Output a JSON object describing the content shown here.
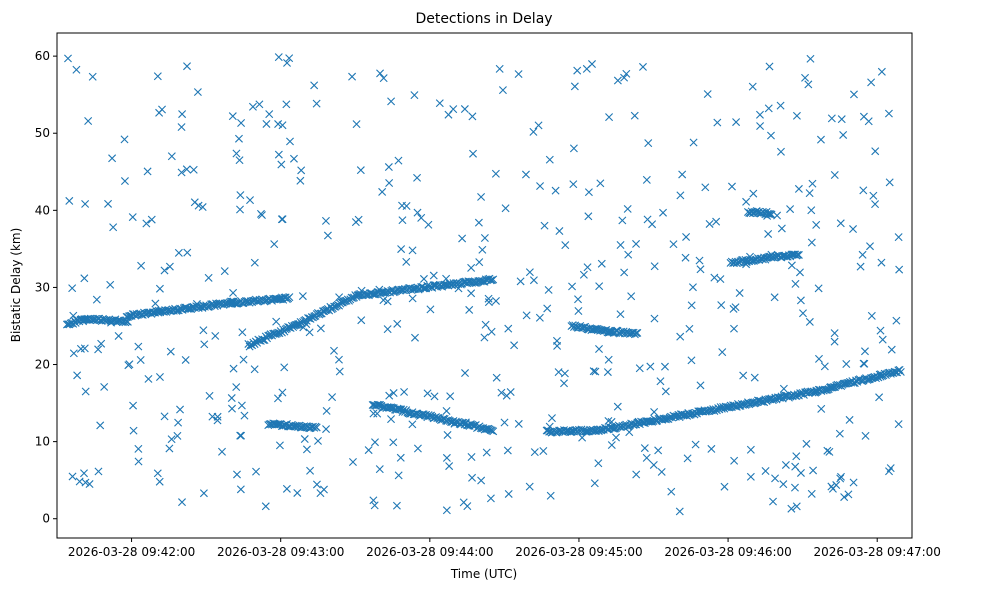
{
  "chart_data": {
    "type": "scatter",
    "title": "Detections in Delay",
    "xlabel": "Time (UTC)",
    "ylabel": "Bistatic Delay (km)",
    "marker": "x",
    "color": "#1f77b4",
    "grid": false,
    "legend": "none",
    "time_origin_label": "2026-03-28 09:41:30",
    "x_unit": "seconds after 09:41:30",
    "xlim": [
      0,
      344
    ],
    "ylim": [
      -2.5,
      63
    ],
    "x_ticks": [
      {
        "value": 30,
        "label": "2026-03-28 09:42:00"
      },
      {
        "value": 90,
        "label": "2026-03-28 09:43:00"
      },
      {
        "value": 150,
        "label": "2026-03-28 09:44:00"
      },
      {
        "value": 210,
        "label": "2026-03-28 09:45:00"
      },
      {
        "value": 270,
        "label": "2026-03-28 09:46:00"
      },
      {
        "value": 330,
        "label": "2026-03-28 09:47:00"
      }
    ],
    "y_ticks": [
      {
        "value": 0,
        "label": "0"
      },
      {
        "value": 10,
        "label": "10"
      },
      {
        "value": 20,
        "label": "20"
      },
      {
        "value": 30,
        "label": "30"
      },
      {
        "value": 40,
        "label": "40"
      },
      {
        "value": 50,
        "label": "50"
      },
      {
        "value": 60,
        "label": "60"
      }
    ],
    "tracks": [
      {
        "x_start": 4,
        "x_end": 12,
        "y_start": 25.3,
        "y_end": 25.9
      },
      {
        "x_start": 10,
        "x_end": 28,
        "y_start": 25.9,
        "y_end": 25.6
      },
      {
        "x_start": 28,
        "x_end": 70,
        "y_start": 26.3,
        "y_end": 28.0
      },
      {
        "x_start": 70,
        "x_end": 93,
        "y_start": 28.0,
        "y_end": 28.6
      },
      {
        "x_start": 77,
        "x_end": 97,
        "y_start": 22.5,
        "y_end": 25.3
      },
      {
        "x_start": 97,
        "x_end": 121,
        "y_start": 25.3,
        "y_end": 29.0
      },
      {
        "x_start": 121,
        "x_end": 175,
        "y_start": 29.0,
        "y_end": 31.0
      },
      {
        "x_start": 85,
        "x_end": 104,
        "y_start": 12.3,
        "y_end": 11.8
      },
      {
        "x_start": 127,
        "x_end": 175,
        "y_start": 14.8,
        "y_end": 11.5
      },
      {
        "x_start": 197,
        "x_end": 218,
        "y_start": 11.3,
        "y_end": 11.5
      },
      {
        "x_start": 218,
        "x_end": 305,
        "y_start": 11.5,
        "y_end": 16.5
      },
      {
        "x_start": 305,
        "x_end": 339,
        "y_start": 16.5,
        "y_end": 19.2
      },
      {
        "x_start": 271,
        "x_end": 298,
        "y_start": 33.2,
        "y_end": 34.3
      },
      {
        "x_start": 207,
        "x_end": 222,
        "y_start": 25.0,
        "y_end": 24.3
      },
      {
        "x_start": 222,
        "x_end": 233,
        "y_start": 24.3,
        "y_end": 24.0
      },
      {
        "x_start": 278,
        "x_end": 287,
        "y_start": 39.8,
        "y_end": 39.6
      }
    ],
    "clutter": {
      "count": 520,
      "x_range": [
        4,
        339
      ],
      "y_range": [
        0.5,
        60
      ]
    }
  }
}
